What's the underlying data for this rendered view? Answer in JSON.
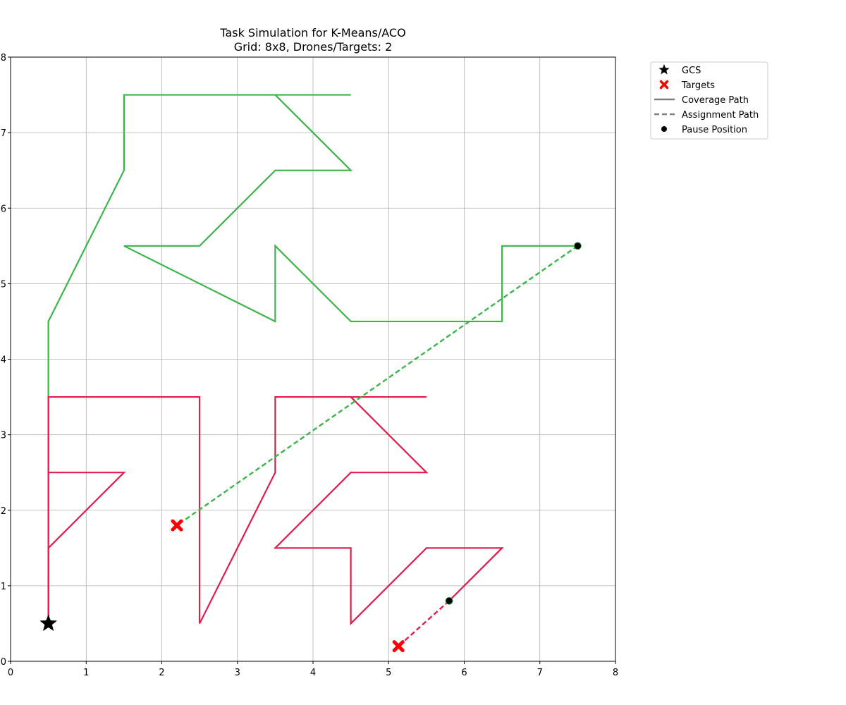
{
  "chart_data": {
    "type": "line",
    "title": "Task Simulation for K-Means/ACO",
    "subtitle": "Grid: 8x8, Drones/Targets: 2",
    "xlabel": "",
    "ylabel": "",
    "xlim": [
      0,
      8
    ],
    "ylim": [
      0,
      8
    ],
    "xticks": [
      "0",
      "1",
      "2",
      "3",
      "4",
      "5",
      "6",
      "7",
      "8"
    ],
    "yticks": [
      "0",
      "1",
      "2",
      "3",
      "4",
      "5",
      "6",
      "7",
      "8"
    ],
    "grid": true,
    "legend_position": "outside-upper-right",
    "legend": [
      {
        "label": "GCS",
        "marker": "star",
        "color": "#000000"
      },
      {
        "label": "Targets",
        "marker": "x",
        "color": "#ff0000"
      },
      {
        "label": "Coverage Path",
        "marker": "solid-line",
        "color": "#808080"
      },
      {
        "label": "Assignment Path",
        "marker": "dashed-line",
        "color": "#808080"
      },
      {
        "label": "Pause Position",
        "marker": "circle",
        "color": "#000000"
      }
    ],
    "gcs": {
      "x": 0.5,
      "y": 0.5,
      "color": "#000000"
    },
    "coverage_paths": [
      {
        "color": "#3cb44b",
        "points": [
          [
            0.5,
            0.5
          ],
          [
            0.5,
            4.5
          ],
          [
            1.5,
            6.5
          ],
          [
            1.5,
            7.5
          ],
          [
            3.5,
            7.5
          ],
          [
            4.5,
            7.5
          ],
          [
            3.5,
            7.5
          ],
          [
            4.5,
            6.5
          ],
          [
            3.5,
            6.5
          ],
          [
            2.5,
            5.5
          ],
          [
            1.5,
            5.5
          ],
          [
            3.5,
            4.5
          ],
          [
            3.5,
            5.5
          ],
          [
            4.5,
            4.5
          ],
          [
            6.5,
            4.5
          ],
          [
            6.5,
            5.5
          ],
          [
            7.5,
            5.5
          ]
        ]
      },
      {
        "color": "#e6194b",
        "points": [
          [
            0.5,
            0.5
          ],
          [
            0.5,
            2.5
          ],
          [
            0.5,
            3.5
          ],
          [
            2.5,
            3.5
          ],
          [
            2.5,
            0.5
          ],
          [
            3.5,
            2.5
          ],
          [
            3.5,
            3.5
          ],
          [
            5.5,
            3.5
          ],
          [
            4.5,
            3.5
          ],
          [
            5.5,
            2.5
          ],
          [
            4.5,
            2.5
          ],
          [
            3.5,
            1.5
          ],
          [
            4.5,
            1.5
          ],
          [
            4.5,
            0.5
          ],
          [
            5.5,
            1.5
          ],
          [
            6.5,
            1.5
          ],
          [
            5.8,
            0.8
          ]
        ]
      },
      {
        "color": "#e6194b",
        "points": [
          [
            0.5,
            2.5
          ],
          [
            1.5,
            2.5
          ],
          [
            0.5,
            1.5
          ],
          [
            0.5,
            0.6
          ]
        ]
      }
    ],
    "assignment_paths": [
      {
        "color": "#3cb44b",
        "from": [
          7.5,
          5.5
        ],
        "to": [
          2.2,
          1.8
        ]
      },
      {
        "color": "#e6194b",
        "from": [
          5.8,
          0.8
        ],
        "to": [
          5.13,
          0.2
        ]
      }
    ],
    "targets": [
      {
        "x": 2.2,
        "y": 1.8,
        "color": "#ff0000"
      },
      {
        "x": 5.13,
        "y": 0.2,
        "color": "#ff0000"
      }
    ],
    "pause_positions": [
      {
        "x": 7.5,
        "y": 5.5,
        "color": "#000000"
      },
      {
        "x": 5.8,
        "y": 0.8,
        "color": "#000000"
      }
    ]
  }
}
